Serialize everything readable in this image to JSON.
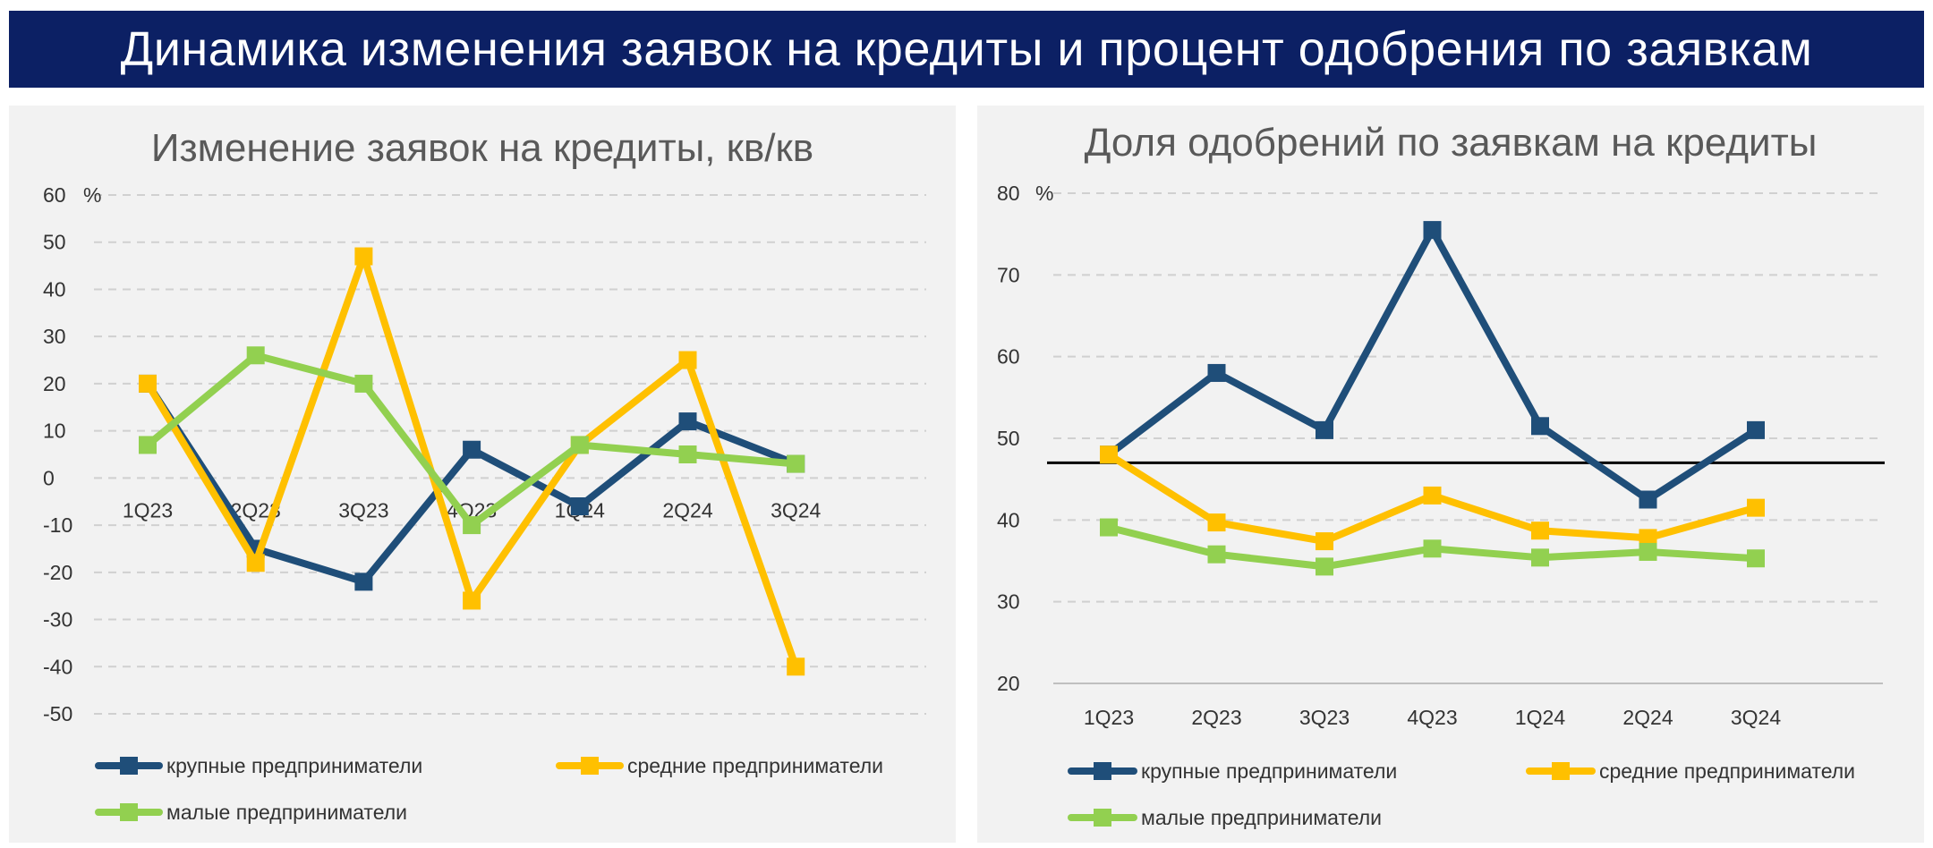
{
  "banner": {
    "title": "Динамика изменения заявок на кредиты и процент одобрения по заявкам"
  },
  "colors": {
    "banner": "#0c2064",
    "large": "#1f4e79",
    "medium": "#ffc000",
    "small": "#92d050",
    "grid": "#d0d0d0",
    "panel": "#f2f2f2",
    "reference_line": "#000000"
  },
  "chart_data": [
    {
      "type": "line",
      "title": "Изменение заявок на кредиты, кв/кв",
      "unit_label": "%",
      "categories": [
        "1Q23",
        "2Q23",
        "3Q23",
        "4Q23",
        "1Q24",
        "2Q24",
        "3Q24"
      ],
      "ylim": [
        -50,
        60
      ],
      "yticks": [
        60,
        50,
        40,
        30,
        20,
        10,
        0,
        -10,
        -20,
        -30,
        -40,
        -50
      ],
      "grid": true,
      "legend_position": "bottom",
      "series": [
        {
          "name": "крупные предприниматели",
          "color": "#1f4e79",
          "values": [
            20,
            -15,
            -22,
            6,
            -6,
            12,
            3
          ]
        },
        {
          "name": "средние предприниматели",
          "color": "#ffc000",
          "values": [
            20,
            -18,
            47,
            -26,
            7,
            25,
            -40
          ]
        },
        {
          "name": "малые предприниматели",
          "color": "#92d050",
          "values": [
            7,
            26,
            20,
            -10,
            7,
            5,
            3
          ]
        }
      ]
    },
    {
      "type": "line",
      "title": "Доля одобрений по заявкам на кредиты",
      "unit_label": "%",
      "categories": [
        "1Q23",
        "2Q23",
        "3Q23",
        "4Q23",
        "1Q24",
        "2Q24",
        "3Q24"
      ],
      "ylim": [
        20,
        80
      ],
      "yticks": [
        80,
        70,
        60,
        50,
        40,
        30,
        20
      ],
      "grid": true,
      "reference_line": 47,
      "legend_position": "bottom",
      "series": [
        {
          "name": "крупные предприниматели",
          "color": "#1f4e79",
          "values": [
            48,
            58,
            51,
            75.5,
            51.5,
            42.5,
            51
          ]
        },
        {
          "name": "средние предприниматели",
          "color": "#ffc000",
          "values": [
            48,
            39.7,
            37.4,
            43,
            38.7,
            37.8,
            41.5
          ]
        },
        {
          "name": "малые предприниматели",
          "color": "#92d050",
          "values": [
            39.1,
            35.8,
            34.3,
            36.5,
            35.4,
            36.1,
            35.3
          ]
        }
      ]
    }
  ]
}
